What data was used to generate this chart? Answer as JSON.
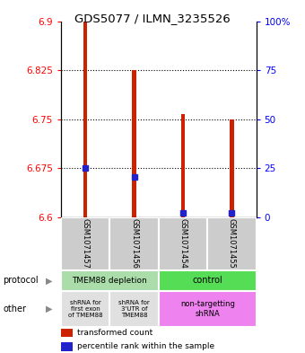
{
  "title": "GDS5077 / ILMN_3235526",
  "samples": [
    "GSM1071457",
    "GSM1071456",
    "GSM1071454",
    "GSM1071455"
  ],
  "red_values": [
    6.9,
    6.825,
    6.758,
    6.75
  ],
  "blue_values": [
    6.675,
    6.662,
    6.607,
    6.607
  ],
  "ymin": 6.6,
  "ymax": 6.9,
  "yticks_left": [
    6.6,
    6.675,
    6.75,
    6.825,
    6.9
  ],
  "yticks_right": [
    0,
    25,
    50,
    75,
    100
  ],
  "yticks_right_labels": [
    "0",
    "25",
    "50",
    "75",
    "100%"
  ],
  "bar_color": "#CC2200",
  "blue_color": "#2222CC",
  "bg_color": "#CCCCCC",
  "legend_red": "transformed count",
  "legend_blue": "percentile rank within the sample",
  "bar_width": 0.08
}
